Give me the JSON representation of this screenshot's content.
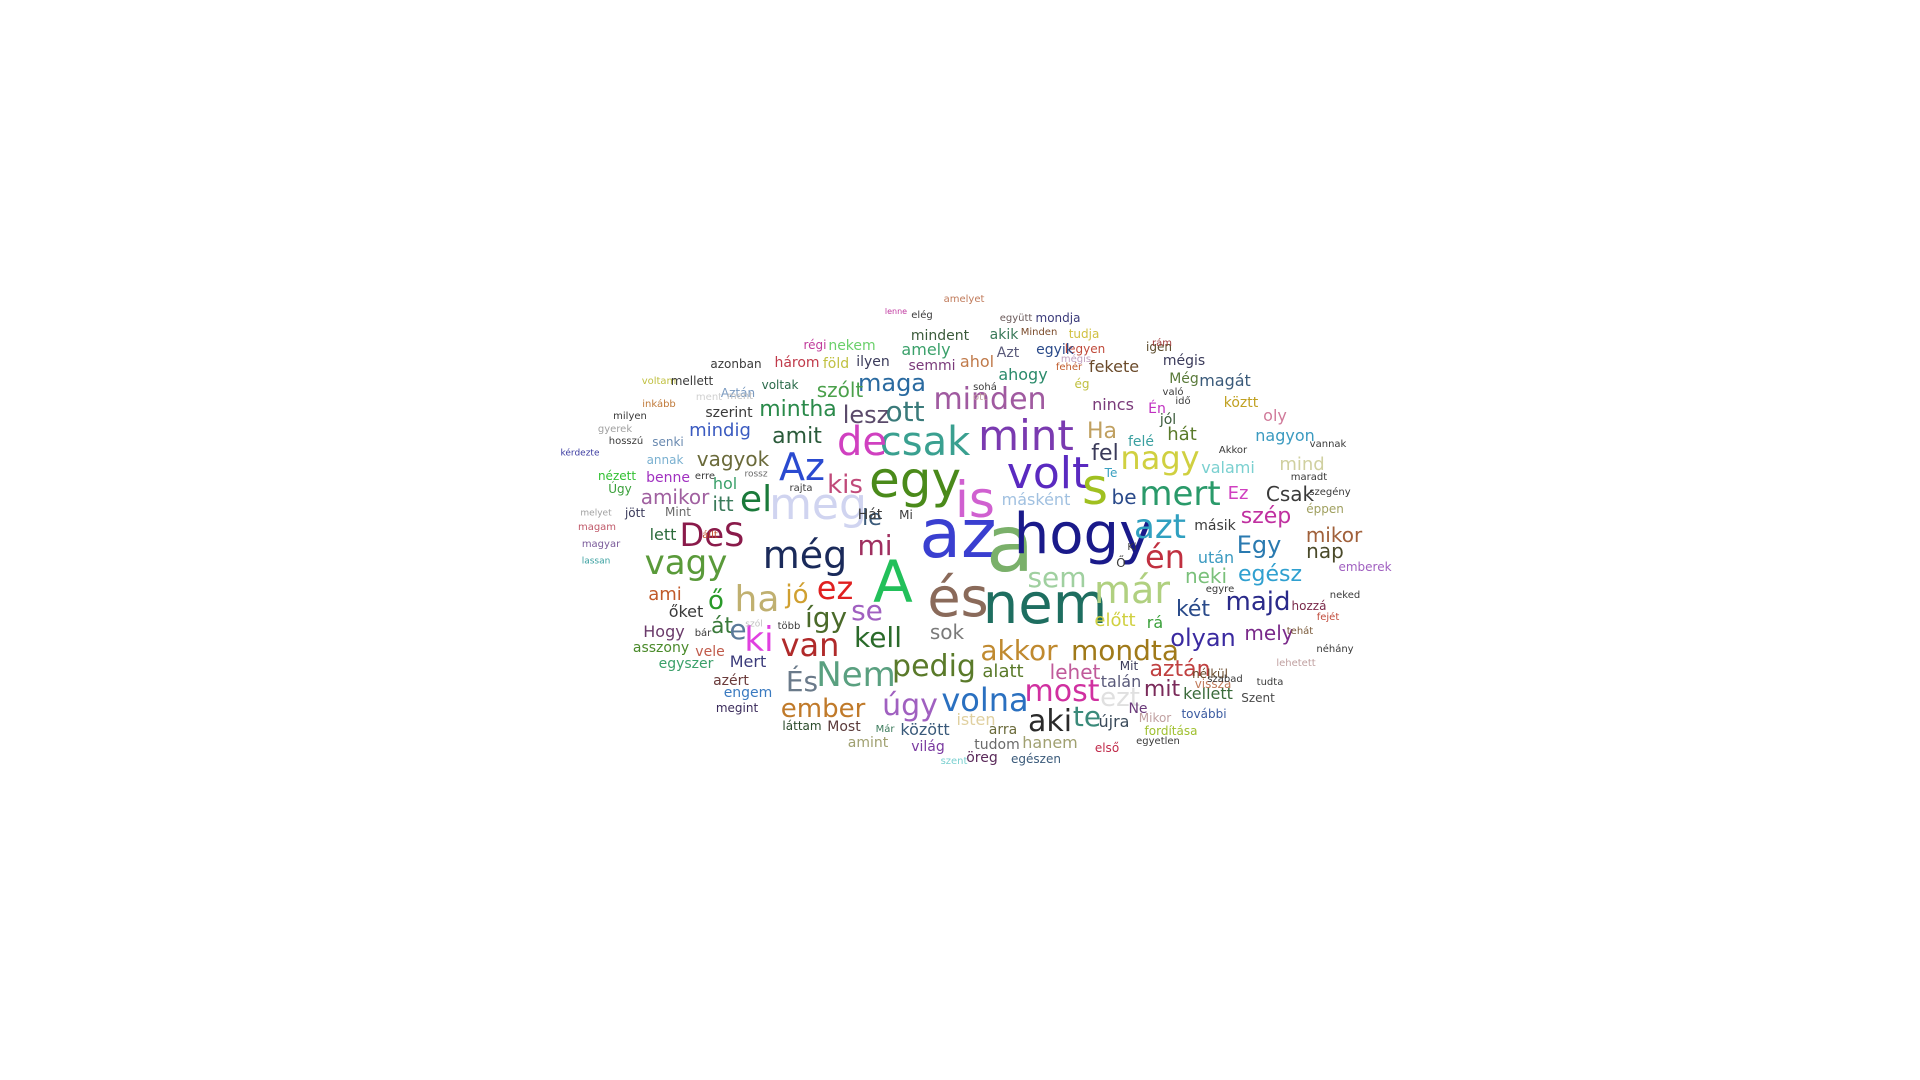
{
  "word_cloud": {
    "words": [
      {
        "text": "az",
        "color": "#3a3fd0"
      },
      {
        "text": "a",
        "color": "#7ab06a"
      },
      {
        "text": "hogy",
        "color": "#1a1a8a"
      },
      {
        "text": "nem",
        "color": "#1e6e60"
      },
      {
        "text": "A",
        "color": "#22c05a"
      },
      {
        "text": "és",
        "color": "#8a6a5a"
      },
      {
        "text": "egy",
        "color": "#4a8a1a"
      },
      {
        "text": "is",
        "color": "#d060d0"
      },
      {
        "text": "meg",
        "color": "#d0d4f0"
      },
      {
        "text": "volt",
        "color": "#5a2ac0"
      },
      {
        "text": "s",
        "color": "#a0c020"
      },
      {
        "text": "mint",
        "color": "#7a3ab0"
      },
      {
        "text": "csak",
        "color": "#3aa090"
      },
      {
        "text": "de",
        "color": "#d040c0"
      },
      {
        "text": "Az",
        "color": "#2a4ad0"
      },
      {
        "text": "el",
        "color": "#1a7a3a"
      },
      {
        "text": "még",
        "color": "#1a2a5a"
      },
      {
        "text": "már",
        "color": "#b0d080"
      },
      {
        "text": "mert",
        "color": "#2a9a6a"
      },
      {
        "text": "nagy",
        "color": "#d0d040"
      },
      {
        "text": "azt",
        "color": "#30a0c0"
      },
      {
        "text": "én",
        "color": "#c03040"
      },
      {
        "text": "vagy",
        "color": "#5a9a3a"
      },
      {
        "text": "DeS",
        "color": "#8a1a4a"
      },
      {
        "text": "ha",
        "color": "#c0b070"
      },
      {
        "text": "jó",
        "color": "#d0a030"
      },
      {
        "text": "ez",
        "color": "#e02020"
      },
      {
        "text": "ki",
        "color": "#e040e0"
      },
      {
        "text": "van",
        "color": "#b02a2a"
      },
      {
        "text": "Nem",
        "color": "#5aa080"
      },
      {
        "text": "És",
        "color": "#6a7a8a"
      },
      {
        "text": "ember",
        "color": "#c07a2a"
      },
      {
        "text": "úgy",
        "color": "#a060c0"
      },
      {
        "text": "volna",
        "color": "#2a70c0"
      },
      {
        "text": "most",
        "color": "#d030a0"
      },
      {
        "text": "aki",
        "color": "#2a2a2a"
      },
      {
        "text": "te",
        "color": "#3a8a7a"
      },
      {
        "text": "ezt",
        "color": "#e0e0e0"
      },
      {
        "text": "akkor",
        "color": "#c08a30"
      },
      {
        "text": "mondta",
        "color": "#a07a1a"
      },
      {
        "text": "pedig",
        "color": "#5a7a2a"
      },
      {
        "text": "kell",
        "color": "#2a6a2a"
      },
      {
        "text": "se",
        "color": "#a060c0"
      },
      {
        "text": "így",
        "color": "#4a6a2a"
      },
      {
        "text": "ő",
        "color": "#2a9a2a"
      },
      {
        "text": "át",
        "color": "#3a7a3a"
      },
      {
        "text": "e",
        "color": "#5a7a9a"
      },
      {
        "text": "mi",
        "color": "#a03060"
      },
      {
        "text": "le",
        "color": "#3a5a7a"
      },
      {
        "text": "kis",
        "color": "#c04a7a"
      },
      {
        "text": "amit",
        "color": "#2a5a3a"
      },
      {
        "text": "mintha",
        "color": "#2a8a4a"
      },
      {
        "text": "lesz",
        "color": "#5a4a6a"
      },
      {
        "text": "ott",
        "color": "#3a7a7a"
      },
      {
        "text": "minden",
        "color": "#a05aa0"
      },
      {
        "text": "maga",
        "color": "#2a6aa0"
      },
      {
        "text": "szólt",
        "color": "#4aa04a"
      },
      {
        "text": "fel",
        "color": "#3a3a5a"
      },
      {
        "text": "Ha",
        "color": "#c0a060"
      },
      {
        "text": "be",
        "color": "#2a4a8a"
      },
      {
        "text": "másként",
        "color": "#a0c0e0"
      },
      {
        "text": "sem",
        "color": "#a0d0a0"
      },
      {
        "text": "neki",
        "color": "#7ac07a"
      },
      {
        "text": "egész",
        "color": "#30a0d0"
      },
      {
        "text": "majd",
        "color": "#2a2a8a"
      },
      {
        "text": "két",
        "color": "#2a4a8a"
      },
      {
        "text": "olyan",
        "color": "#3a2aa0"
      },
      {
        "text": "mely",
        "color": "#7a2a8a"
      },
      {
        "text": "Egy",
        "color": "#2a7ab0"
      },
      {
        "text": "szép",
        "color": "#c030a0"
      },
      {
        "text": "Csak",
        "color": "#3a3a3a"
      },
      {
        "text": "Ez",
        "color": "#d040c0"
      },
      {
        "text": "mikor",
        "color": "#a0603a"
      },
      {
        "text": "nap",
        "color": "#4a4a2a"
      },
      {
        "text": "után",
        "color": "#3a9ac0"
      },
      {
        "text": "aztán",
        "color": "#c04040"
      },
      {
        "text": "mit",
        "color": "#7a2a5a"
      },
      {
        "text": "lehet",
        "color": "#c05a9a"
      },
      {
        "text": "alatt",
        "color": "#5a7a2a"
      },
      {
        "text": "sok",
        "color": "#7a7a7a"
      },
      {
        "text": "előtt",
        "color": "#d0d040"
      },
      {
        "text": "rá",
        "color": "#3aa03a"
      },
      {
        "text": "kellett",
        "color": "#3a6a3a"
      },
      {
        "text": "nélkül",
        "color": "#6a4a2a"
      },
      {
        "text": "vissza",
        "color": "#c07a5a"
      },
      {
        "text": "Szent",
        "color": "#4a4a4a"
      },
      {
        "text": "hozzá",
        "color": "#7a2a4a"
      },
      {
        "text": "emberek",
        "color": "#a060c0"
      },
      {
        "text": "éppen",
        "color": "#a0a060"
      },
      {
        "text": "oly",
        "color": "#d07a9a"
      },
      {
        "text": "mind",
        "color": "#d0d0a0"
      },
      {
        "text": "valami",
        "color": "#7ad0d0"
      },
      {
        "text": "nagyon",
        "color": "#3a9ac0"
      },
      {
        "text": "köztt",
        "color": "#c0a020"
      },
      {
        "text": "hát",
        "color": "#5a7a2a"
      },
      {
        "text": "felé",
        "color": "#3aa0a0"
      },
      {
        "text": "magát",
        "color": "#3a5a7a"
      },
      {
        "text": "Még",
        "color": "#5a7a3a"
      },
      {
        "text": "mégis",
        "color": "#3a3a5a"
      },
      {
        "text": "igen",
        "color": "#5a4a2a"
      },
      {
        "text": "fekete",
        "color": "#6a4a2a"
      },
      {
        "text": "legyen",
        "color": "#c04a3a"
      },
      {
        "text": "egyik",
        "color": "#2a4a8a"
      },
      {
        "text": "Azt",
        "color": "#5a5a7a"
      },
      {
        "text": "ahogy",
        "color": "#2a8a6a"
      },
      {
        "text": "ahol",
        "color": "#c07a4a"
      },
      {
        "text": "akik",
        "color": "#3a7a5a"
      },
      {
        "text": "mondja",
        "color": "#3a3a7a"
      },
      {
        "text": "együtt",
        "color": "#6a5a5a"
      },
      {
        "text": "Minden",
        "color": "#7a4a2a"
      },
      {
        "text": "tudja",
        "color": "#d0c040"
      },
      {
        "text": "mindent",
        "color": "#3a5a3a"
      },
      {
        "text": "amely",
        "color": "#3aa06a"
      },
      {
        "text": "semmi",
        "color": "#7a3a7a"
      },
      {
        "text": "nekem",
        "color": "#6ad06a"
      },
      {
        "text": "három",
        "color": "#c03a4a"
      },
      {
        "text": "föld",
        "color": "#c0c040"
      },
      {
        "text": "ilyen",
        "color": "#3a3a5a"
      },
      {
        "text": "régi",
        "color": "#c03a9a"
      },
      {
        "text": "voltak",
        "color": "#2a6a4a"
      },
      {
        "text": "mindig",
        "color": "#3a5ac0"
      },
      {
        "text": "szerint",
        "color": "#3a3a3a"
      },
      {
        "text": "amikor",
        "color": "#a060a0"
      },
      {
        "text": "itt",
        "color": "#3a7a5a"
      },
      {
        "text": "hol",
        "color": "#3aa06a"
      },
      {
        "text": "vagyok",
        "color": "#6a6a3a"
      },
      {
        "text": "lett",
        "color": "#2a6a3a"
      },
      {
        "text": "Mint",
        "color": "#6a6a6a"
      },
      {
        "text": "jött",
        "color": "#3a3a5a"
      },
      {
        "text": "ami",
        "color": "#c05a2a"
      },
      {
        "text": "őket",
        "color": "#3a3a3a"
      },
      {
        "text": "Hogy",
        "color": "#6a3a6a"
      },
      {
        "text": "asszony",
        "color": "#4a8a2a"
      },
      {
        "text": "vele",
        "color": "#c05a4a"
      },
      {
        "text": "Mert",
        "color": "#3a3a7a"
      },
      {
        "text": "egyszer",
        "color": "#3aa06a"
      },
      {
        "text": "azért",
        "color": "#6a3a3a"
      },
      {
        "text": "engem",
        "color": "#3a7ac0"
      },
      {
        "text": "megint",
        "color": "#3a2a5a"
      },
      {
        "text": "láttam",
        "color": "#2a4a2a"
      },
      {
        "text": "Most",
        "color": "#5a3a3a"
      },
      {
        "text": "amint",
        "color": "#a0a070"
      },
      {
        "text": "között",
        "color": "#3a5a7a"
      },
      {
        "text": "világ",
        "color": "#7a3aa0"
      },
      {
        "text": "Már",
        "color": "#3a7a5a"
      },
      {
        "text": "isten",
        "color": "#e0d0a0"
      },
      {
        "text": "arra",
        "color": "#6a6a3a"
      },
      {
        "text": "tudom",
        "color": "#6a6a6a"
      },
      {
        "text": "hanem",
        "color": "#a0a070"
      },
      {
        "text": "öreg",
        "color": "#5a2a5a"
      },
      {
        "text": "egészen",
        "color": "#3a5a7a"
      },
      {
        "text": "első",
        "color": "#c02a4a"
      },
      {
        "text": "újra",
        "color": "#3a4a5a"
      },
      {
        "text": "talán",
        "color": "#5a5a7a"
      },
      {
        "text": "Ne",
        "color": "#6a3a7a"
      },
      {
        "text": "Mikor",
        "color": "#c0a0a0"
      },
      {
        "text": "fordítása",
        "color": "#a0c030"
      },
      {
        "text": "további",
        "color": "#3a5aa0"
      },
      {
        "text": "egyetlen",
        "color": "#3a3a3a"
      },
      {
        "text": "Mit",
        "color": "#3a3a5a"
      },
      {
        "text": "másik",
        "color": "#3a3a3a"
      },
      {
        "text": "benne",
        "color": "#a030c0"
      },
      {
        "text": "nézett",
        "color": "#30c030"
      },
      {
        "text": "Úgy",
        "color": "#3aa03a"
      },
      {
        "text": "annak",
        "color": "#7ab0d0"
      },
      {
        "text": "senki",
        "color": "#6a8ab0"
      },
      {
        "text": "gyerek",
        "color": "#a0a0a0"
      },
      {
        "text": "hosszú",
        "color": "#3a3a3a"
      },
      {
        "text": "kérdezte",
        "color": "#3a3aa0"
      },
      {
        "text": "milyen",
        "color": "#3a3a3a"
      },
      {
        "text": "inkább",
        "color": "#c07a3a"
      },
      {
        "text": "voltam",
        "color": "#c0c040"
      },
      {
        "text": "mellett",
        "color": "#3a3a3a"
      },
      {
        "text": "azonban",
        "color": "#3a3a3a"
      },
      {
        "text": "Aztán",
        "color": "#7a9ac0"
      },
      {
        "text": "ment",
        "color": "#d0d0d0"
      },
      {
        "text": "állt",
        "color": "#c04a2a"
      },
      {
        "text": "magam",
        "color": "#c05a6a"
      },
      {
        "text": "magyar",
        "color": "#7a5a9a"
      },
      {
        "text": "lassan",
        "color": "#3aa0a0"
      },
      {
        "text": "melyet",
        "color": "#a0a0a0"
      },
      {
        "text": "rajta",
        "color": "#3a3a3a"
      },
      {
        "text": "erre",
        "color": "#3a3a3a"
      },
      {
        "text": "rossz",
        "color": "#6a6a6a"
      },
      {
        "text": "szól",
        "color": "#c0c0c0"
      },
      {
        "text": "több",
        "color": "#3a3a3a"
      },
      {
        "text": "bár",
        "color": "#3a3a3a"
      },
      {
        "text": "sohá",
        "color": "#3a3a3a"
      },
      {
        "text": "mégis",
        "color": "#c0a0c0"
      },
      {
        "text": "jól",
        "color": "#3a5a3a"
      },
      {
        "text": "Én",
        "color": "#c030c0"
      },
      {
        "text": "rám",
        "color": "#a03a3a"
      },
      {
        "text": "fehér",
        "color": "#c05a2a"
      },
      {
        "text": "ég",
        "color": "#c0c040"
      },
      {
        "text": "nincs",
        "color": "#7a3a7a"
      },
      {
        "text": "Akkor",
        "color": "#3a3a3a"
      },
      {
        "text": "szegény",
        "color": "#3a3a3a"
      },
      {
        "text": "fejét",
        "color": "#c04a3a"
      },
      {
        "text": "tehát",
        "color": "#7a5a3a"
      },
      {
        "text": "néhány",
        "color": "#3a3a3a"
      },
      {
        "text": "neked",
        "color": "#3a3a3a"
      },
      {
        "text": "lehetett",
        "color": "#c0a0a0"
      },
      {
        "text": "egyre",
        "color": "#3a3a3a"
      },
      {
        "text": "szabad",
        "color": "#3a3a3a"
      },
      {
        "text": "tudta",
        "color": "#3a3a3a"
      },
      {
        "text": "vannak",
        "color": "#3a3a3a"
      },
      {
        "text": "maradt",
        "color": "#3a3a3a"
      },
      {
        "text": "Ki",
        "color": "#3a3a3a"
      },
      {
        "text": "Ő",
        "color": "#3a3a3a"
      },
      {
        "text": "Te",
        "color": "#3aa0c0"
      },
      {
        "text": "Hát",
        "color": "#3a3a3a"
      },
      {
        "text": "Mi",
        "color": "#3a3a3a"
      },
      {
        "text": "amelyet",
        "color": "#c07a5a"
      },
      {
        "text": "elég",
        "color": "#3a3a3a"
      },
      {
        "text": "lenne",
        "color": "#c03aa0"
      },
      {
        "text": "idő",
        "color": "#3a3a3a"
      },
      {
        "text": "való",
        "color": "#3a3a3a"
      },
      {
        "text": "szent",
        "color": "#7ad0d0"
      },
      {
        "text": "ott",
        "color": "#c0a0a0"
      },
      {
        "text": "ment",
        "color": "#c0c0c0"
      }
    ]
  }
}
